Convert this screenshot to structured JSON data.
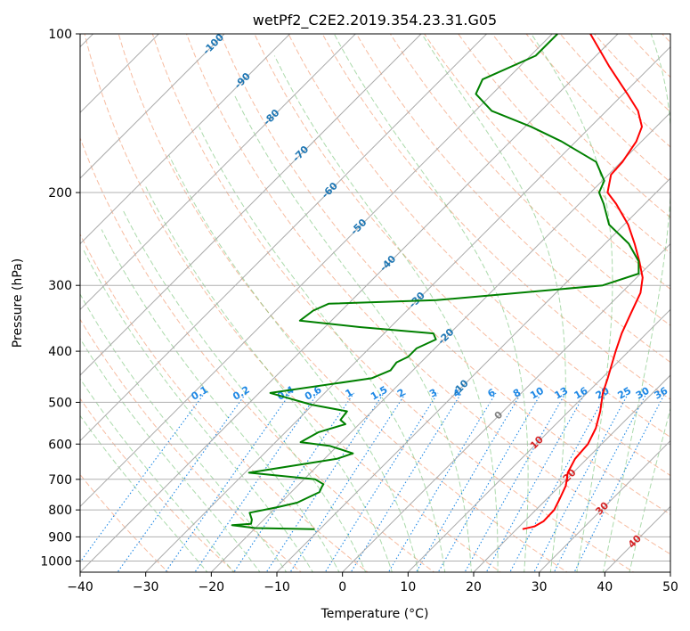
{
  "chart_data": {
    "type": "line",
    "subtype": "skew-t log-p diagram",
    "title": "wetPf2_C2E2.2019.354.23.31.G05",
    "xlabel": "Temperature (°C)",
    "ylabel": "Pressure (hPa)",
    "xlim": [
      -40,
      50
    ],
    "ylim": [
      1050,
      100
    ],
    "x_ticks": [
      -40,
      -30,
      -20,
      -10,
      0,
      10,
      20,
      30,
      40,
      50
    ],
    "y_ticks": [
      100,
      200,
      300,
      400,
      500,
      600,
      700,
      800,
      900,
      1000
    ],
    "grid": true,
    "isotherm_labels": [
      "-100",
      "-90",
      "-80",
      "-70",
      "-60",
      "-50",
      "-40",
      "-30",
      "-20",
      "-10",
      "0",
      "10",
      "20",
      "30",
      "40"
    ],
    "mixing_ratio_labels": [
      "0.1",
      "0.2",
      "0.4",
      "0.6",
      "1",
      "1.5",
      "2",
      "3",
      "4",
      "6",
      "8",
      "10",
      "13",
      "16",
      "20",
      "25",
      "30",
      "36"
    ],
    "series": [
      {
        "name": "Temperature",
        "color": "#ff0000",
        "points": [
          [
            870,
            20.9
          ],
          [
            860,
            22.3
          ],
          [
            840,
            22.9
          ],
          [
            800,
            22.8
          ],
          [
            760,
            21.9
          ],
          [
            720,
            20.9
          ],
          [
            680,
            19.2
          ],
          [
            640,
            18.2
          ],
          [
            600,
            17.9
          ],
          [
            560,
            16.7
          ],
          [
            520,
            14.8
          ],
          [
            480,
            12.4
          ],
          [
            450,
            10.9
          ],
          [
            420,
            9.2
          ],
          [
            400,
            8.0
          ],
          [
            370,
            6.2
          ],
          [
            340,
            4.6
          ],
          [
            310,
            2.9
          ],
          [
            290,
            0.9
          ],
          [
            270,
            -2.1
          ],
          [
            250,
            -5.5
          ],
          [
            230,
            -9.4
          ],
          [
            210,
            -14.4
          ],
          [
            200,
            -17.4
          ],
          [
            185,
            -19.6
          ],
          [
            175,
            -19.8
          ],
          [
            160,
            -20.8
          ],
          [
            150,
            -22.2
          ],
          [
            140,
            -25.2
          ],
          [
            130,
            -29.4
          ],
          [
            115,
            -36.5
          ],
          [
            100,
            -44.2
          ]
        ]
      },
      {
        "name": "Dewpoint",
        "color": "#008000",
        "points": [
          [
            870,
            -10.8
          ],
          [
            866,
            -20.0
          ],
          [
            855,
            -24.0
          ],
          [
            850,
            -21.3
          ],
          [
            835,
            -21.8
          ],
          [
            810,
            -23.2
          ],
          [
            790,
            -19.7
          ],
          [
            775,
            -17.5
          ],
          [
            740,
            -15.7
          ],
          [
            725,
            -16.1
          ],
          [
            715,
            -16.3
          ],
          [
            700,
            -18.3
          ],
          [
            680,
            -29.4
          ],
          [
            640,
            -18.1
          ],
          [
            625,
            -16.5
          ],
          [
            605,
            -21.1
          ],
          [
            595,
            -26.2
          ],
          [
            570,
            -25.0
          ],
          [
            550,
            -22.1
          ],
          [
            540,
            -23.5
          ],
          [
            520,
            -23.8
          ],
          [
            505,
            -30.3
          ],
          [
            480,
            -38.3
          ],
          [
            450,
            -25.1
          ],
          [
            435,
            -23.4
          ],
          [
            420,
            -23.7
          ],
          [
            410,
            -22.8
          ],
          [
            395,
            -22.8
          ],
          [
            380,
            -21.2
          ],
          [
            370,
            -22.5
          ],
          [
            360,
            -34.7
          ],
          [
            350,
            -44.8
          ],
          [
            335,
            -44.3
          ],
          [
            325,
            -43.0
          ],
          [
            320,
            -27.1
          ],
          [
            300,
            -4.0
          ],
          [
            285,
            -0.3
          ],
          [
            270,
            -2.2
          ],
          [
            250,
            -6.4
          ],
          [
            230,
            -12.3
          ],
          [
            210,
            -16.3
          ],
          [
            200,
            -18.7
          ],
          [
            190,
            -19.7
          ],
          [
            175,
            -23.8
          ],
          [
            160,
            -32.2
          ],
          [
            150,
            -39.1
          ],
          [
            140,
            -47.5
          ],
          [
            130,
            -52.5
          ],
          [
            122,
            -53.7
          ],
          [
            110,
            -49.2
          ],
          [
            100,
            -49.2
          ]
        ]
      }
    ]
  }
}
